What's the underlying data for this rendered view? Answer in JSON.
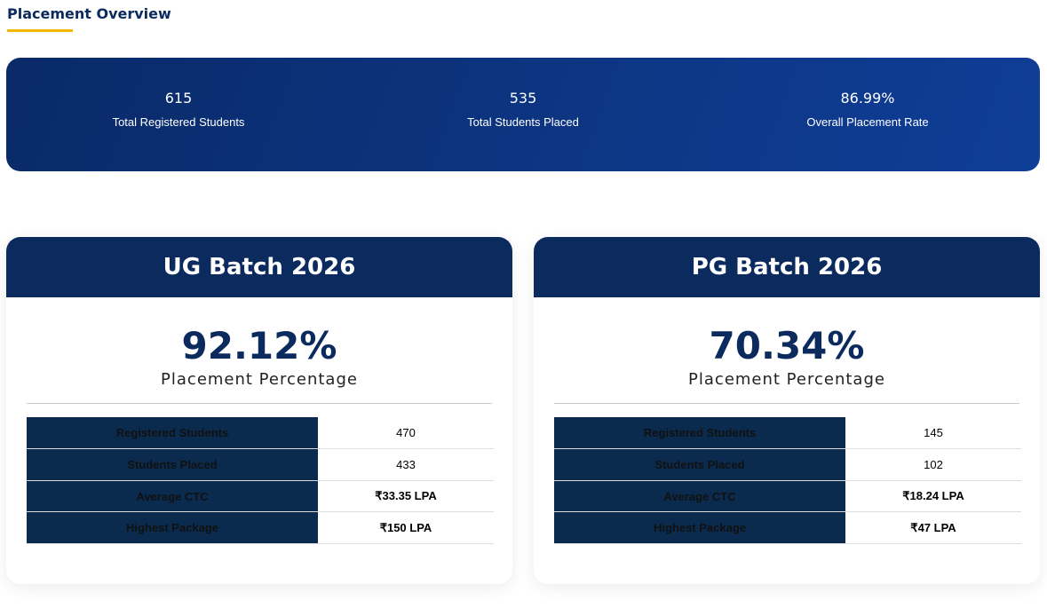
{
  "header": {
    "title": "Placement Overview"
  },
  "summary": [
    {
      "value": "615",
      "label": "Total Registered Students"
    },
    {
      "value": "535",
      "label": "Total Students Placed"
    },
    {
      "value": "86.99%",
      "label": "Overall Placement Rate"
    }
  ],
  "batches": [
    {
      "title": "UG Batch 2026",
      "percentage": "92.12%",
      "percentage_label": "Placement Percentage",
      "rows": [
        [
          "Registered Students",
          "470"
        ],
        [
          "Students Placed",
          "433"
        ],
        [
          "Average CTC",
          "₹33.35 LPA"
        ],
        [
          "Highest Package",
          "₹150 LPA"
        ]
      ]
    },
    {
      "title": "PG Batch 2026",
      "percentage": "70.34%",
      "percentage_label": "Placement Percentage",
      "rows": [
        [
          "Registered Students",
          "145"
        ],
        [
          "Students Placed",
          "102"
        ],
        [
          "Average CTC",
          "₹18.24 LPA"
        ],
        [
          "Highest Package",
          "₹47 LPA"
        ]
      ]
    }
  ]
}
